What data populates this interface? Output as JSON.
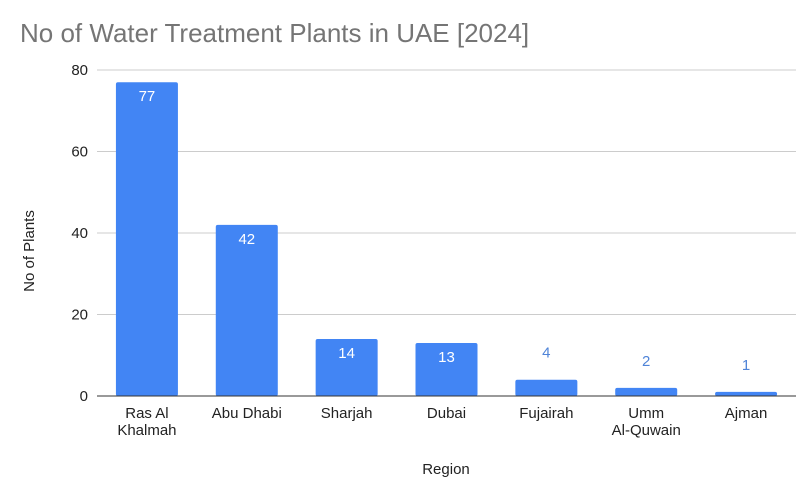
{
  "chart_data": {
    "type": "bar",
    "title": "No of Water Treatment Plants in UAE [2024]",
    "xlabel": "Region",
    "ylabel": "No of Plants",
    "categories": [
      [
        "Ras Al",
        "Khalmah"
      ],
      [
        "Abu Dhabi"
      ],
      [
        "Sharjah"
      ],
      [
        "Dubai"
      ],
      [
        "Fujairah"
      ],
      [
        "Umm",
        "Al-Quwain"
      ],
      [
        "Ajman"
      ]
    ],
    "values": [
      77,
      42,
      14,
      13,
      4,
      2,
      1
    ],
    "ylim": [
      0,
      80
    ],
    "yticks": [
      0,
      20,
      40,
      60,
      80
    ],
    "grid": true,
    "legend": "none",
    "bar_color": "#4285f4",
    "label_inside_color": "#ffffff",
    "label_outside_color": "#4f84d8"
  }
}
